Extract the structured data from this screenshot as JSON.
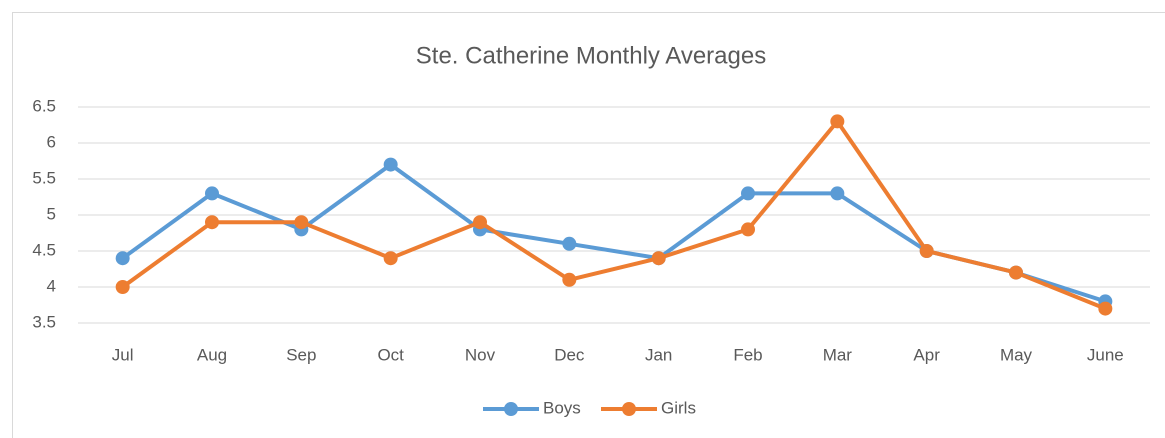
{
  "chart_data": {
    "type": "line",
    "title": "Ste. Catherine Monthly Averages",
    "categories": [
      "Jul",
      "Aug",
      "Sep",
      "Oct",
      "Nov",
      "Dec",
      "Jan",
      "Feb",
      "Mar",
      "Apr",
      "May",
      "June"
    ],
    "series": [
      {
        "name": "Boys",
        "color": "#5b9bd5",
        "values": [
          4.4,
          5.3,
          4.8,
          5.7,
          4.8,
          4.6,
          4.4,
          5.3,
          5.3,
          4.5,
          4.2,
          3.8
        ]
      },
      {
        "name": "Girls",
        "color": "#ed7d31",
        "values": [
          4.0,
          4.9,
          4.9,
          4.4,
          4.9,
          4.1,
          4.4,
          4.8,
          6.3,
          4.5,
          4.2,
          3.7
        ]
      }
    ],
    "ylim": [
      3.5,
      6.5
    ],
    "yticks": [
      3.5,
      4,
      4.5,
      5,
      5.5,
      6,
      6.5
    ],
    "grid": true,
    "legend": "bottom"
  }
}
